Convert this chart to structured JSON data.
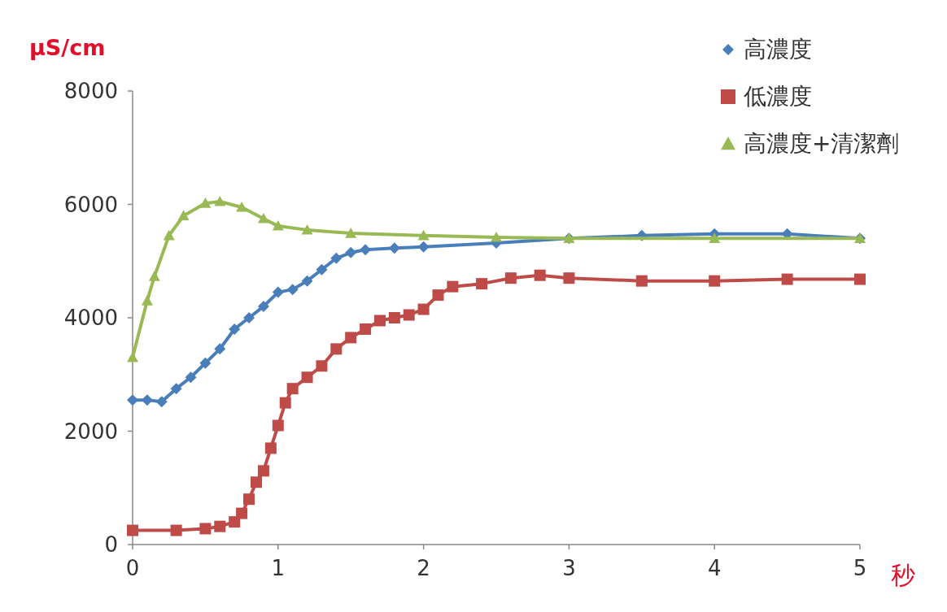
{
  "chart_data": {
    "type": "line",
    "xlabel": "秒",
    "ylabel": "μS/cm",
    "xlim": [
      0,
      5
    ],
    "xticks": [
      0,
      1,
      2,
      3,
      4,
      5
    ],
    "ylim": [
      0,
      8000
    ],
    "yticks": [
      0,
      2000,
      4000,
      6000,
      8000
    ],
    "legend": "top right",
    "grid": false,
    "series": [
      {
        "name": "高濃度",
        "color": "#4a7ebb",
        "marker": "diamond",
        "x": [
          0,
          0.1,
          0.2,
          0.3,
          0.4,
          0.5,
          0.6,
          0.7,
          0.8,
          0.9,
          1.0,
          1.1,
          1.2,
          1.3,
          1.4,
          1.5,
          1.6,
          1.8,
          2.0,
          2.5,
          3.0,
          3.5,
          4.0,
          4.5,
          5.0
        ],
        "values": [
          2550,
          2550,
          2520,
          2750,
          2950,
          3200,
          3450,
          3800,
          4000,
          4200,
          4450,
          4500,
          4650,
          4850,
          5050,
          5150,
          5200,
          5230,
          5250,
          5320,
          5400,
          5450,
          5480,
          5480,
          5400
        ]
      },
      {
        "name": "低濃度",
        "color": "#be4b48",
        "marker": "square",
        "x": [
          0,
          0.3,
          0.5,
          0.6,
          0.7,
          0.75,
          0.8,
          0.85,
          0.9,
          0.95,
          1.0,
          1.05,
          1.1,
          1.2,
          1.3,
          1.4,
          1.5,
          1.6,
          1.7,
          1.8,
          1.9,
          2.0,
          2.1,
          2.2,
          2.4,
          2.6,
          2.8,
          3.0,
          3.5,
          4.0,
          4.5,
          5.0
        ],
        "values": [
          250,
          250,
          280,
          320,
          400,
          550,
          800,
          1100,
          1300,
          1700,
          2100,
          2500,
          2750,
          2950,
          3150,
          3450,
          3650,
          3800,
          3950,
          4000,
          4050,
          4150,
          4400,
          4550,
          4600,
          4700,
          4750,
          4700,
          4650,
          4650,
          4680,
          4680
        ]
      },
      {
        "name": "高濃度+清潔劑",
        "color": "#98b954",
        "marker": "triangle",
        "x": [
          0,
          0.1,
          0.15,
          0.25,
          0.35,
          0.5,
          0.6,
          0.75,
          0.9,
          1.0,
          1.2,
          1.5,
          2.0,
          2.5,
          3.0,
          4.0,
          5.0
        ],
        "values": [
          3300,
          4300,
          4730,
          5450,
          5800,
          6020,
          6050,
          5950,
          5750,
          5620,
          5550,
          5490,
          5450,
          5420,
          5400,
          5400,
          5400
        ]
      }
    ]
  }
}
